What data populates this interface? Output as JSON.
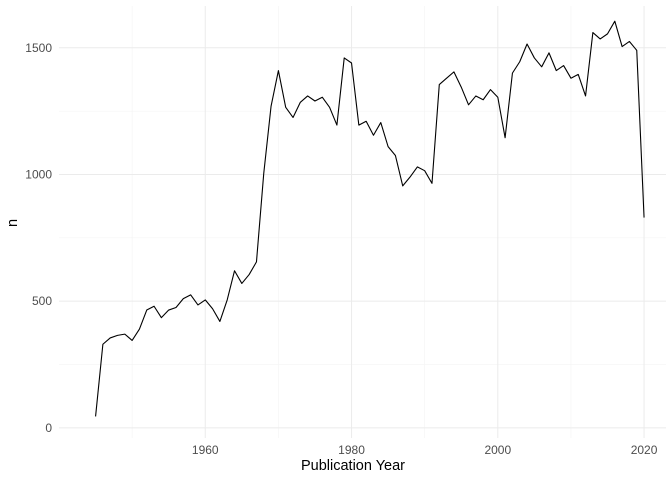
{
  "chart_data": {
    "type": "line",
    "title": "",
    "xlabel": "Publication Year",
    "ylabel": "n",
    "xlim": [
      1940,
      2023
    ],
    "ylim": [
      -40,
      1665
    ],
    "x_ticks": [
      1960,
      1980,
      2000,
      2020
    ],
    "y_ticks": [
      0,
      500,
      1000,
      1500
    ],
    "grid": true,
    "legend": "none",
    "line_color": "#000000",
    "series": [
      {
        "x": [
          1945,
          1946,
          1947,
          1948,
          1949,
          1950,
          1951,
          1952,
          1953,
          1954,
          1955,
          1956,
          1957,
          1958,
          1959,
          1960,
          1961,
          1962,
          1963,
          1964,
          1965,
          1966,
          1967,
          1968,
          1969,
          1970,
          1971,
          1972,
          1973,
          1974,
          1975,
          1976,
          1977,
          1978,
          1979,
          1980,
          1981,
          1982,
          1983,
          1984,
          1985,
          1986,
          1987,
          1988,
          1989,
          1990,
          1991,
          1992,
          1993,
          1994,
          1995,
          1996,
          1997,
          1998,
          1999,
          2000,
          2001,
          2002,
          2003,
          2004,
          2005,
          2006,
          2007,
          2008,
          2009,
          2010,
          2011,
          2012,
          2013,
          2014,
          2015,
          2016,
          2017,
          2018,
          2019,
          2020
        ],
        "y": [
          45,
          330,
          355,
          365,
          370,
          345,
          390,
          465,
          480,
          435,
          465,
          475,
          510,
          525,
          485,
          505,
          470,
          420,
          505,
          620,
          570,
          605,
          655,
          1005,
          1270,
          1410,
          1265,
          1225,
          1285,
          1310,
          1290,
          1305,
          1265,
          1195,
          1460,
          1440,
          1195,
          1210,
          1155,
          1205,
          1110,
          1075,
          955,
          990,
          1030,
          1015,
          965,
          1355,
          1380,
          1405,
          1345,
          1275,
          1310,
          1295,
          1335,
          1305,
          1145,
          1400,
          1445,
          1515,
          1460,
          1425,
          1480,
          1410,
          1430,
          1380,
          1395,
          1310,
          1560,
          1535,
          1555,
          1605,
          1505,
          1525,
          1490,
          830
        ]
      }
    ]
  }
}
